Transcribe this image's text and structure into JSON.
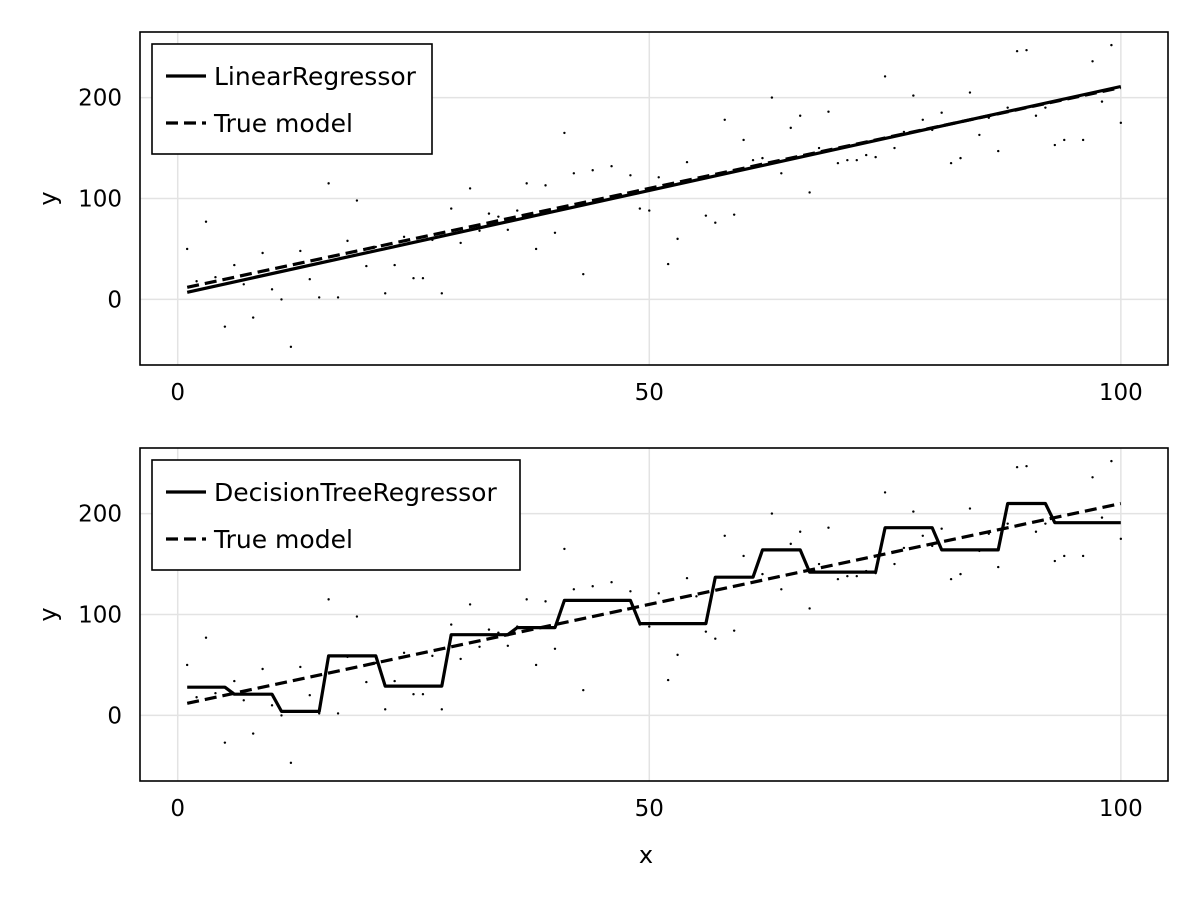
{
  "chart_data": [
    {
      "type": "line",
      "xlabel": "",
      "ylabel": "y",
      "xlim": [
        -4,
        105
      ],
      "ylim": [
        -65,
        265
      ],
      "xticks": [
        0,
        50,
        100
      ],
      "yticks": [
        0,
        100,
        200
      ],
      "grid": true,
      "legend_position": "top-left",
      "series": [
        {
          "name": "LinearRegressor",
          "style": "solid",
          "x": [
            1,
            100
          ],
          "y": [
            7,
            211
          ]
        },
        {
          "name": "True model",
          "style": "dashed",
          "x": [
            1,
            100
          ],
          "y": [
            12,
            210
          ]
        }
      ],
      "scatter": {
        "x": [
          1,
          2,
          3,
          4,
          5,
          6,
          7,
          8,
          9,
          10,
          11,
          12,
          13,
          14,
          15,
          16,
          17,
          18,
          19,
          20,
          21,
          22,
          23,
          24,
          25,
          26,
          27,
          28,
          29,
          30,
          31,
          32,
          33,
          34,
          35,
          36,
          37,
          38,
          39,
          40,
          41,
          42,
          43,
          44,
          45,
          46,
          47,
          48,
          49,
          50,
          51,
          52,
          53,
          54,
          55,
          56,
          57,
          58,
          59,
          60,
          61,
          62,
          63,
          64,
          65,
          66,
          67,
          68,
          69,
          70,
          71,
          72,
          73,
          74,
          75,
          76,
          77,
          78,
          79,
          80,
          81,
          82,
          83,
          84,
          85,
          86,
          87,
          88,
          89,
          90,
          91,
          92,
          93,
          94,
          95,
          96,
          97,
          98,
          99,
          100
        ],
        "y": [
          50,
          18,
          77,
          22,
          -27,
          34,
          15,
          -18,
          46,
          10,
          0,
          -47,
          48,
          20,
          2,
          115,
          2,
          58,
          98,
          33,
          52,
          6,
          34,
          62,
          21,
          21,
          59,
          6,
          90,
          56,
          110,
          68,
          85,
          82,
          69,
          88,
          115,
          50,
          113,
          66,
          165,
          125,
          25,
          128,
          100,
          132,
          104,
          123,
          90,
          88,
          121,
          35,
          60,
          136,
          118,
          83,
          76,
          178,
          84,
          158,
          138,
          140,
          200,
          125,
          170,
          182,
          106,
          150,
          186,
          135,
          138,
          138,
          143,
          141,
          221,
          150,
          166,
          202,
          178,
          168,
          185,
          135,
          140,
          205,
          163,
          180,
          147,
          190,
          246,
          247,
          182,
          190,
          153,
          158,
          200,
          158,
          236,
          196,
          252,
          175
        ]
      }
    },
    {
      "type": "line",
      "xlabel": "x",
      "ylabel": "y",
      "xlim": [
        -4,
        105
      ],
      "ylim": [
        -65,
        265
      ],
      "xticks": [
        0,
        50,
        100
      ],
      "yticks": [
        0,
        100,
        200
      ],
      "grid": true,
      "legend_position": "top-left",
      "series": [
        {
          "name": "DecisionTreeRegressor",
          "style": "solid",
          "x": [
            1,
            5,
            6,
            10,
            11,
            15,
            16,
            21,
            22,
            28,
            29,
            35,
            36,
            40,
            41,
            48,
            49,
            56,
            57,
            61,
            62,
            66,
            67,
            74,
            75,
            80,
            81,
            87,
            88,
            92,
            93,
            100
          ],
          "y": [
            28,
            28,
            21,
            21,
            4,
            4,
            59,
            59,
            29,
            29,
            80,
            80,
            87,
            87,
            114,
            114,
            91,
            91,
            137,
            137,
            164,
            164,
            142,
            142,
            186,
            186,
            164,
            164,
            210,
            210,
            191,
            191
          ]
        },
        {
          "name": "True model",
          "style": "dashed",
          "x": [
            1,
            100
          ],
          "y": [
            12,
            210
          ]
        }
      ],
      "scatter": {
        "x": [
          1,
          2,
          3,
          4,
          5,
          6,
          7,
          8,
          9,
          10,
          11,
          12,
          13,
          14,
          15,
          16,
          17,
          18,
          19,
          20,
          21,
          22,
          23,
          24,
          25,
          26,
          27,
          28,
          29,
          30,
          31,
          32,
          33,
          34,
          35,
          36,
          37,
          38,
          39,
          40,
          41,
          42,
          43,
          44,
          45,
          46,
          47,
          48,
          49,
          50,
          51,
          52,
          53,
          54,
          55,
          56,
          57,
          58,
          59,
          60,
          61,
          62,
          63,
          64,
          65,
          66,
          67,
          68,
          69,
          70,
          71,
          72,
          73,
          74,
          75,
          76,
          77,
          78,
          79,
          80,
          81,
          82,
          83,
          84,
          85,
          86,
          87,
          88,
          89,
          90,
          91,
          92,
          93,
          94,
          95,
          96,
          97,
          98,
          99,
          100
        ],
        "y": [
          50,
          18,
          77,
          22,
          -27,
          34,
          15,
          -18,
          46,
          10,
          0,
          -47,
          48,
          20,
          2,
          115,
          2,
          58,
          98,
          33,
          52,
          6,
          34,
          62,
          21,
          21,
          59,
          6,
          90,
          56,
          110,
          68,
          85,
          82,
          69,
          88,
          115,
          50,
          113,
          66,
          165,
          125,
          25,
          128,
          100,
          132,
          104,
          123,
          90,
          88,
          121,
          35,
          60,
          136,
          118,
          83,
          76,
          178,
          84,
          158,
          138,
          140,
          200,
          125,
          170,
          182,
          106,
          150,
          186,
          135,
          138,
          138,
          143,
          141,
          221,
          150,
          166,
          202,
          178,
          168,
          185,
          135,
          140,
          205,
          163,
          180,
          147,
          190,
          246,
          247,
          182,
          190,
          153,
          158,
          200,
          158,
          236,
          196,
          252,
          175
        ]
      }
    }
  ]
}
